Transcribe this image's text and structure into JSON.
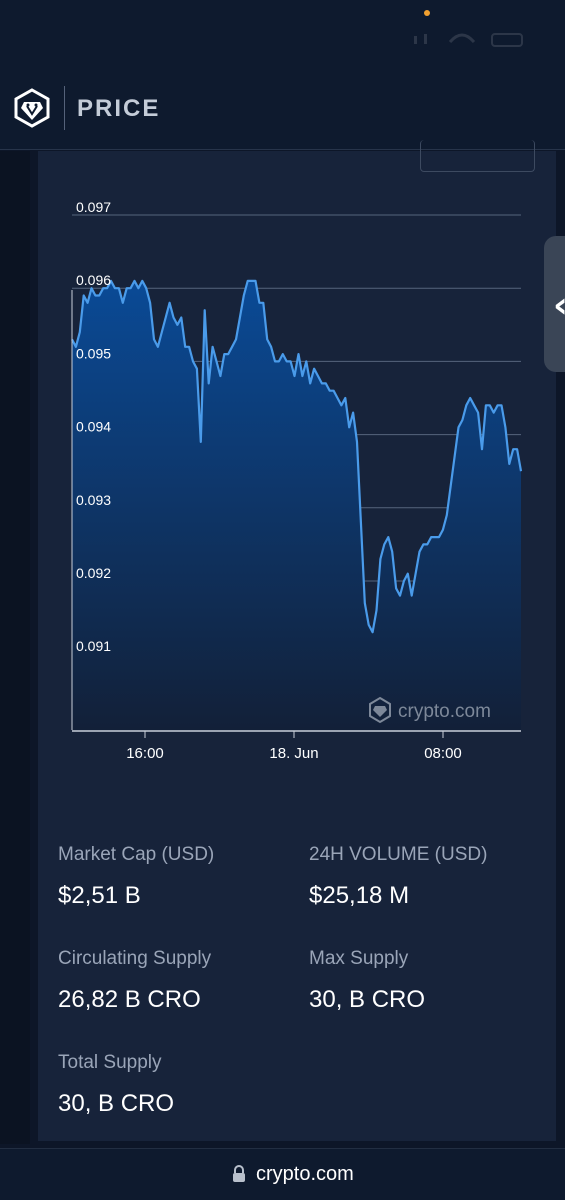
{
  "header": {
    "title": "PRICE",
    "logo_icon": "crypto-com-lion-shield-icon"
  },
  "chart_data": {
    "type": "area",
    "x_ticks": [
      "16:00",
      "18. Jun",
      "08:00"
    ],
    "y_ticks": [
      "0.097",
      "0.096",
      "0.095",
      "0.094",
      "0.093",
      "0.092",
      "0.091"
    ],
    "ylim": [
      0.09,
      0.097
    ],
    "watermark": "crypto.com",
    "grid": true,
    "line_color": "#4a9bea",
    "fill_top_color": "#0a4a96",
    "fill_bottom_color": "#122038",
    "values": [
      0.0953,
      0.0952,
      0.0954,
      0.0959,
      0.0958,
      0.096,
      0.0959,
      0.0959,
      0.096,
      0.096,
      0.0961,
      0.096,
      0.096,
      0.0958,
      0.096,
      0.096,
      0.0961,
      0.096,
      0.0961,
      0.096,
      0.0958,
      0.0953,
      0.0952,
      0.0954,
      0.0956,
      0.0958,
      0.0956,
      0.0955,
      0.0956,
      0.0952,
      0.0952,
      0.095,
      0.0949,
      0.0939,
      0.0957,
      0.0947,
      0.0952,
      0.095,
      0.0948,
      0.0951,
      0.0951,
      0.0952,
      0.0953,
      0.0956,
      0.0959,
      0.0961,
      0.0961,
      0.0961,
      0.0958,
      0.0958,
      0.0953,
      0.0952,
      0.095,
      0.095,
      0.0951,
      0.095,
      0.095,
      0.0948,
      0.0951,
      0.0948,
      0.095,
      0.0947,
      0.0949,
      0.0948,
      0.0947,
      0.0947,
      0.0946,
      0.0946,
      0.0945,
      0.0944,
      0.0945,
      0.0941,
      0.0943,
      0.0939,
      0.0928,
      0.0917,
      0.0914,
      0.0913,
      0.0916,
      0.0923,
      0.0925,
      0.0926,
      0.0924,
      0.0919,
      0.0918,
      0.092,
      0.0921,
      0.0918,
      0.0921,
      0.0924,
      0.0925,
      0.0925,
      0.0926,
      0.0926,
      0.0926,
      0.0927,
      0.0929,
      0.0933,
      0.0937,
      0.0941,
      0.0942,
      0.0944,
      0.0945,
      0.0944,
      0.0943,
      0.0938,
      0.0944,
      0.0944,
      0.0943,
      0.0944,
      0.0944,
      0.0941,
      0.0936,
      0.0938,
      0.0938,
      0.0935
    ]
  },
  "stats": {
    "market_cap": {
      "label": "Market Cap (USD)",
      "value": "$2,51 B"
    },
    "volume_24h": {
      "label": "24H VOLUME (USD)",
      "value": "$25,18 M"
    },
    "circulating_supply": {
      "label": "Circulating Supply",
      "value": "26,82 B CRO"
    },
    "max_supply": {
      "label": "Max Supply",
      "value": "30, B CRO"
    },
    "total_supply": {
      "label": "Total Supply",
      "value": "30, B CRO"
    }
  },
  "url_bar": {
    "url": "crypto.com",
    "lock_icon": "lock-icon"
  }
}
